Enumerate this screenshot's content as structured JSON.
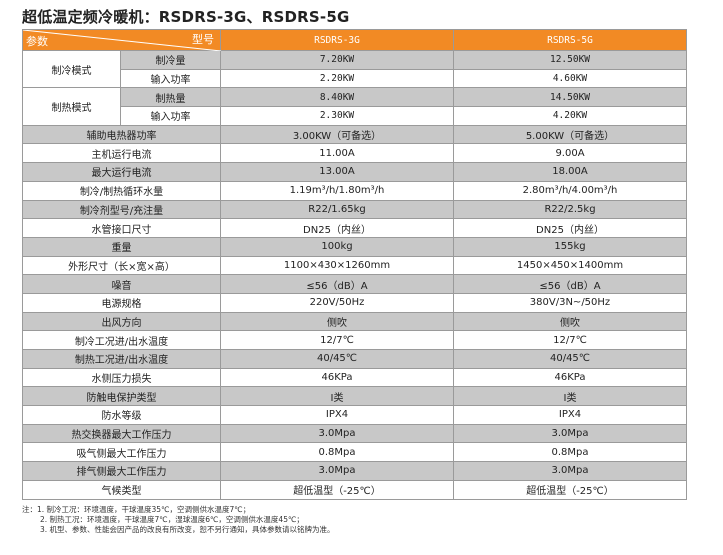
{
  "title": "超低温定频冷暖机：RSDRS-3G、RSDRS-5G",
  "header": {
    "param": "参数",
    "model": "型号",
    "models": [
      "RSDRS-3G",
      "RSDRS-5G"
    ]
  },
  "groups": [
    {
      "label": "制冷模式",
      "rows": [
        {
          "label": "制冷量",
          "values": [
            "7.20KW",
            "12.50KW"
          ]
        },
        {
          "label": "输入功率",
          "values": [
            "2.20KW",
            "4.60KW"
          ]
        }
      ]
    },
    {
      "label": "制热模式",
      "rows": [
        {
          "label": "制热量",
          "values": [
            "8.40KW",
            "14.50KW"
          ]
        },
        {
          "label": "输入功率",
          "values": [
            "2.30KW",
            "4.20KW"
          ]
        }
      ]
    }
  ],
  "rows": [
    {
      "label": "辅助电热器功率",
      "values": [
        "3.00KW（可备选）",
        "5.00KW（可备选）"
      ]
    },
    {
      "label": "主机运行电流",
      "values": [
        "11.00A",
        "9.00A"
      ]
    },
    {
      "label": "最大运行电流",
      "values": [
        "13.00A",
        "18.00A"
      ]
    },
    {
      "label": "制冷/制热循环水量",
      "values": [
        "1.19m³/h/1.80m³/h",
        "2.80m³/h/4.00m³/h"
      ]
    },
    {
      "label": "制冷剂型号/充注量",
      "values": [
        "R22/1.65kg",
        "R22/2.5kg"
      ]
    },
    {
      "label": "水管接口尺寸",
      "values": [
        "DN25（内丝）",
        "DN25（内丝）"
      ]
    },
    {
      "label": "重量",
      "values": [
        "100kg",
        "155kg"
      ]
    },
    {
      "label": "外形尺寸（长×宽×高）",
      "values": [
        "1100×430×1260mm",
        "1450×450×1400mm"
      ]
    },
    {
      "label": "噪音",
      "values": [
        "≤56（dB）A",
        "≤56（dB）A"
      ]
    },
    {
      "label": "电源规格",
      "values": [
        "220V/50Hz",
        "380V/3N~/50Hz"
      ]
    },
    {
      "label": "出风方向",
      "values": [
        "侧吹",
        "侧吹"
      ]
    },
    {
      "label": "制冷工况进/出水温度",
      "values": [
        "12/7℃",
        "12/7℃"
      ]
    },
    {
      "label": "制热工况进/出水温度",
      "values": [
        "40/45℃",
        "40/45℃"
      ]
    },
    {
      "label": "水侧压力损失",
      "values": [
        "46KPa",
        "46KPa"
      ]
    },
    {
      "label": "防触电保护类型",
      "values": [
        "I类",
        "I类"
      ]
    },
    {
      "label": "防水等级",
      "values": [
        "IPX4",
        "IPX4"
      ]
    },
    {
      "label": "热交换器最大工作压力",
      "values": [
        "3.0Mpa",
        "3.0Mpa"
      ]
    },
    {
      "label": "吸气侧最大工作压力",
      "values": [
        "0.8Mpa",
        "0.8Mpa"
      ]
    },
    {
      "label": "排气侧最大工作压力",
      "values": [
        "3.0Mpa",
        "3.0Mpa"
      ]
    },
    {
      "label": "气候类型",
      "values": [
        "超低温型（-25℃）",
        "超低温型（-25℃）"
      ]
    }
  ],
  "notes": {
    "prefix": "注：",
    "items": [
      "1. 制冷工况：环境温度，干球温度35℃，空调侧供水温度7℃；",
      "2. 制热工况：环境温度，干球温度7℃，湿球温度6℃，空调侧供水温度45℃；",
      "3. 机型、参数、性能会因产品的改良有所改变，恕不另行通知，具体参数请以铭牌为准。"
    ]
  },
  "colors": {
    "header": "#f28a24",
    "row_gray": "#c8c8c8"
  }
}
